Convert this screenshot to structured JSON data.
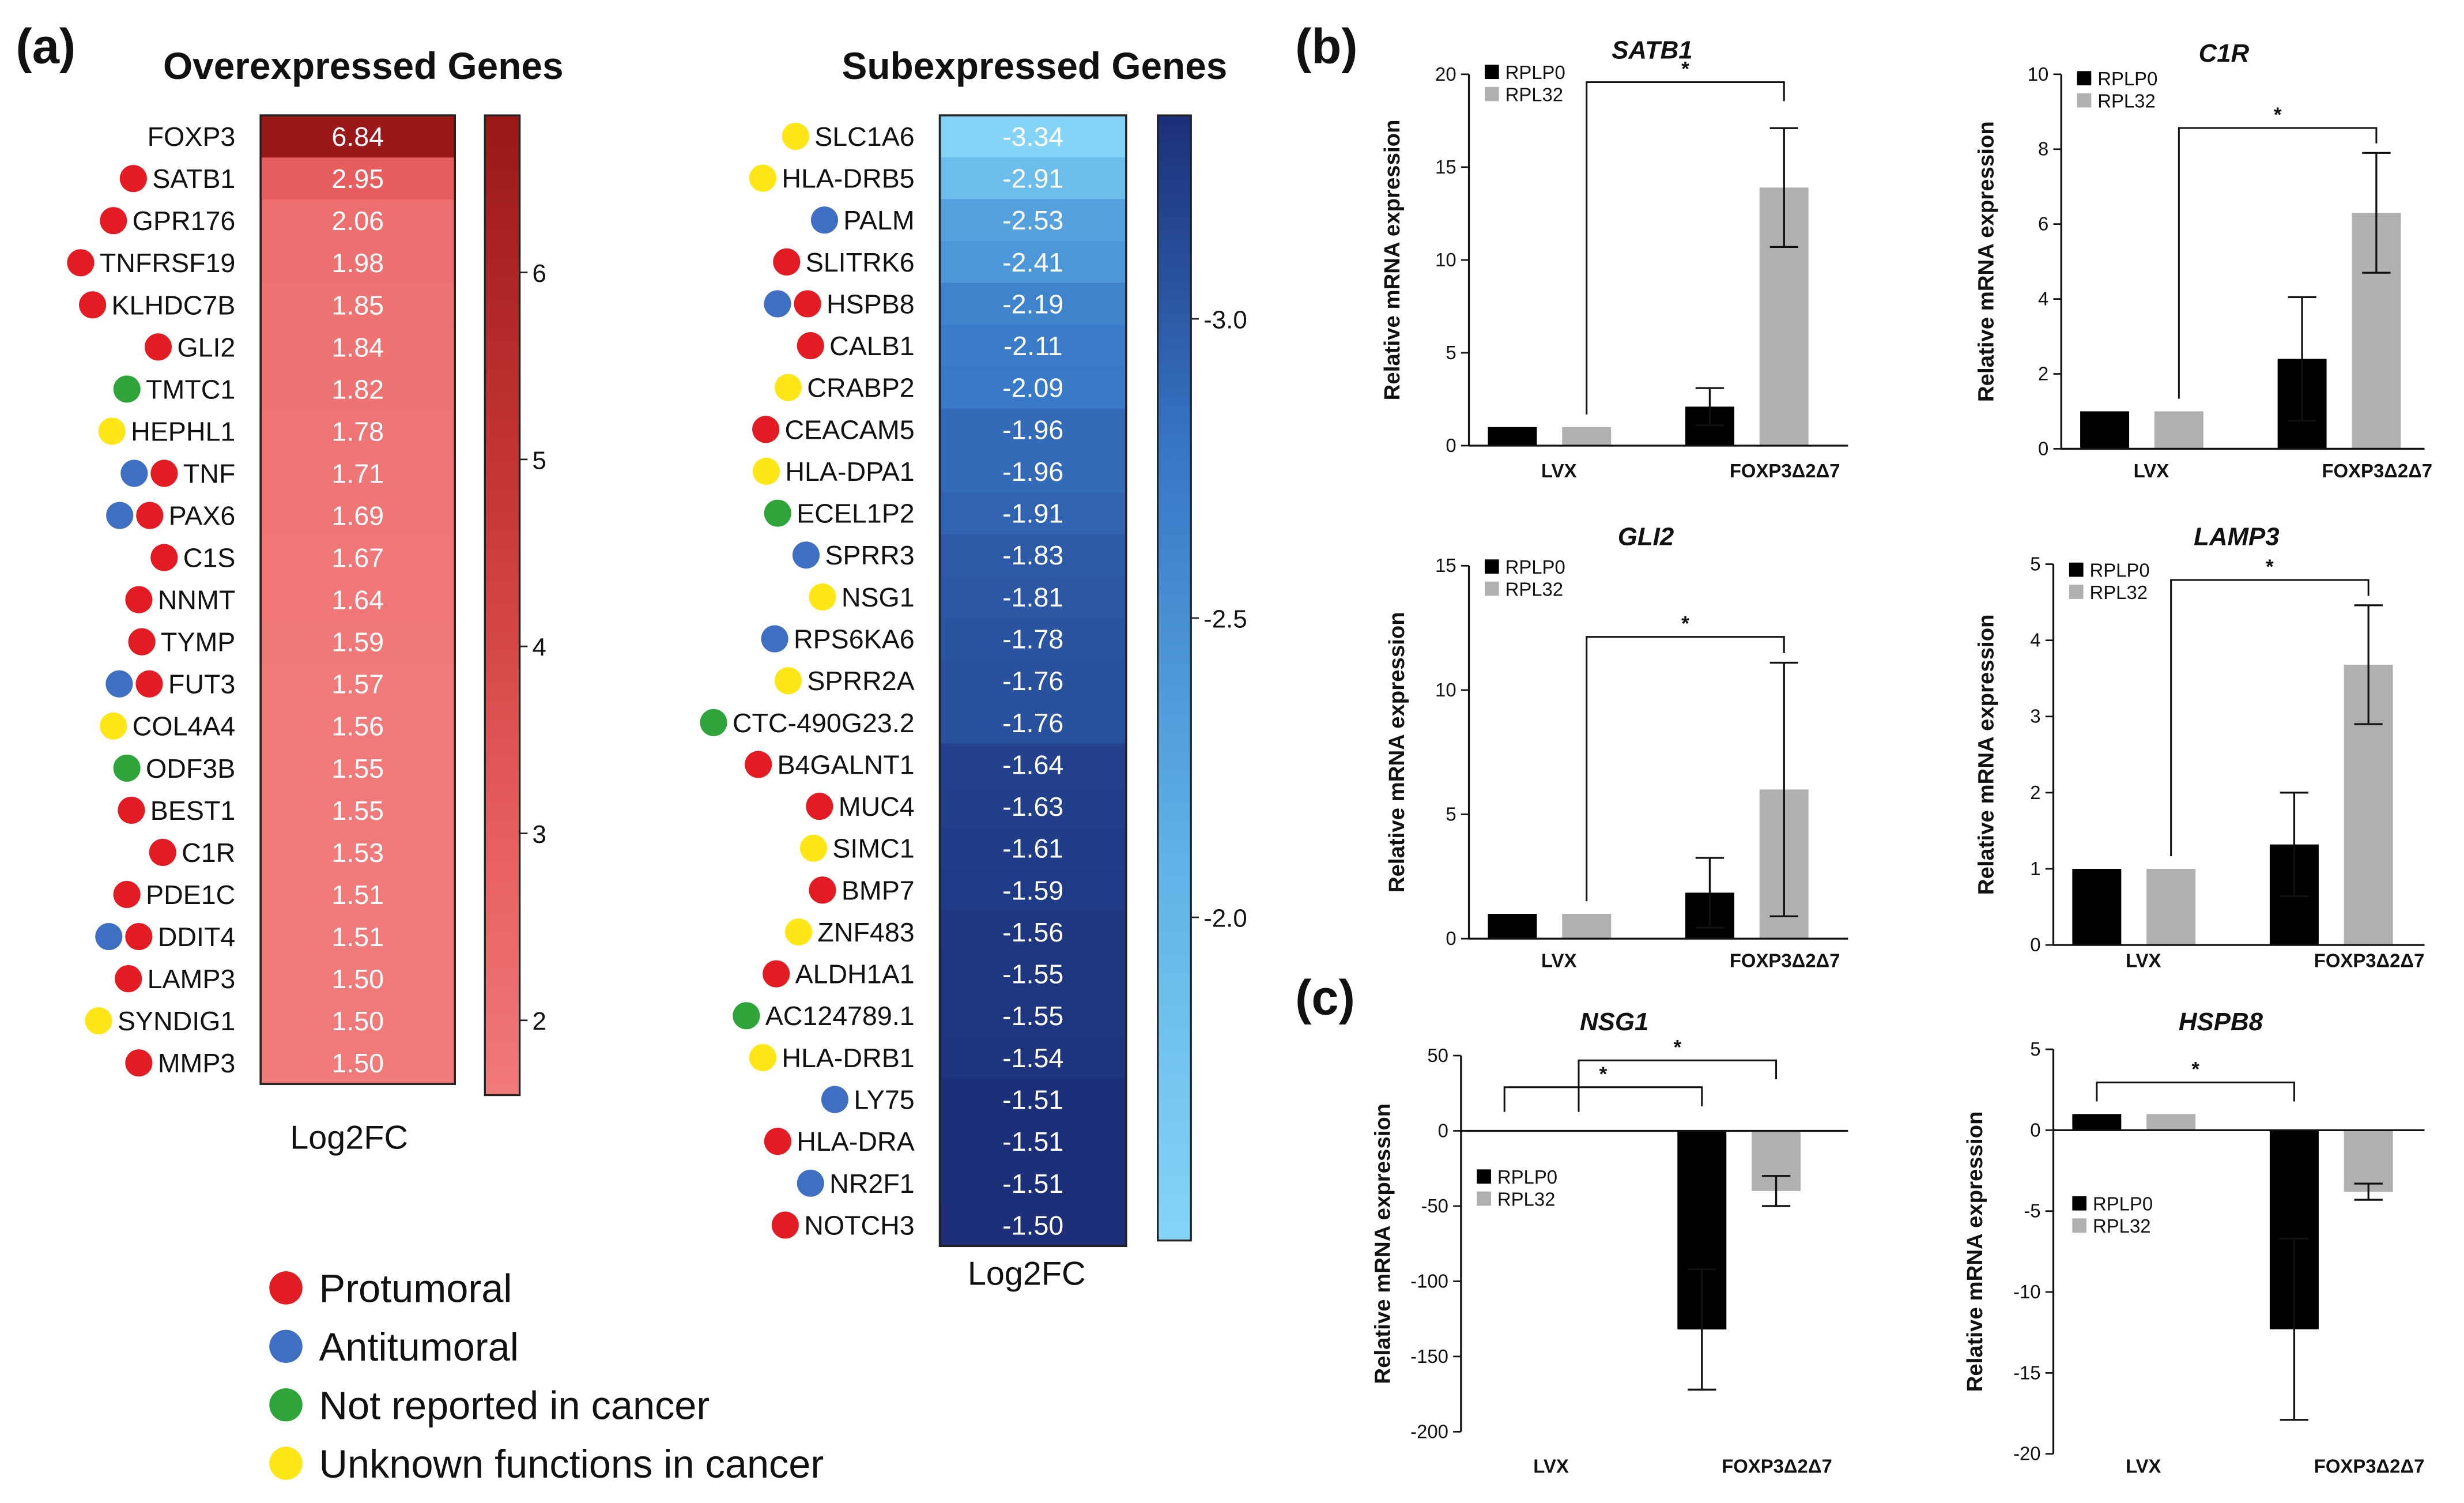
{
  "colors": {
    "protumoral": "#e31b23",
    "antitumoral": "#3f6fc2",
    "not_reported": "#2ea43a",
    "unknown": "#ffe619",
    "rplp0": "#000000",
    "rpl32": "#b0b0b0"
  },
  "panels": {
    "a": "(a)",
    "b": "(b)",
    "c": "(c)"
  },
  "legend": [
    {
      "label": "Protumoral",
      "cat": "P"
    },
    {
      "label": "Antitumoral",
      "cat": "A"
    },
    {
      "label": "Not reported in cancer",
      "cat": "N"
    },
    {
      "label": "Unknown functions in cancer",
      "cat": "U"
    }
  ],
  "chart_data": [
    {
      "type": "heatmap",
      "title": "Overexpressed Genes",
      "xlabel": "Log2FC",
      "colorbar_ticks": [
        "2",
        "3",
        "4",
        "5",
        "6"
      ],
      "colorbar_range": [
        1.5,
        6.84
      ],
      "rows": [
        {
          "gene": "FOXP3",
          "value": 6.84,
          "label": "6.84",
          "cats": []
        },
        {
          "gene": "SATB1",
          "value": 2.95,
          "label": "2.95",
          "cats": [
            "P"
          ]
        },
        {
          "gene": "GPR176",
          "value": 2.06,
          "label": "2.06",
          "cats": [
            "P"
          ]
        },
        {
          "gene": "TNFRSF19",
          "value": 1.98,
          "label": "1.98",
          "cats": [
            "P"
          ]
        },
        {
          "gene": "KLHDC7B",
          "value": 1.85,
          "label": "1.85",
          "cats": [
            "P"
          ]
        },
        {
          "gene": "GLI2",
          "value": 1.84,
          "label": "1.84",
          "cats": [
            "P"
          ]
        },
        {
          "gene": "TMTC1",
          "value": 1.82,
          "label": "1.82",
          "cats": [
            "N"
          ]
        },
        {
          "gene": "HEPHL1",
          "value": 1.78,
          "label": "1.78",
          "cats": [
            "U"
          ]
        },
        {
          "gene": "TNF",
          "value": 1.71,
          "label": "1.71",
          "cats": [
            "A",
            "P"
          ]
        },
        {
          "gene": "PAX6",
          "value": 1.69,
          "label": "1.69",
          "cats": [
            "A",
            "P"
          ]
        },
        {
          "gene": "C1S",
          "value": 1.67,
          "label": "1.67",
          "cats": [
            "P"
          ]
        },
        {
          "gene": "NNMT",
          "value": 1.64,
          "label": "1.64",
          "cats": [
            "P"
          ]
        },
        {
          "gene": "TYMP",
          "value": 1.59,
          "label": "1.59",
          "cats": [
            "P"
          ]
        },
        {
          "gene": "FUT3",
          "value": 1.57,
          "label": "1.57",
          "cats": [
            "A",
            "P"
          ]
        },
        {
          "gene": "COL4A4",
          "value": 1.56,
          "label": "1.56",
          "cats": [
            "U"
          ]
        },
        {
          "gene": "ODF3B",
          "value": 1.55,
          "label": "1.55",
          "cats": [
            "N"
          ]
        },
        {
          "gene": "BEST1",
          "value": 1.55,
          "label": "1.55",
          "cats": [
            "P"
          ]
        },
        {
          "gene": "C1R",
          "value": 1.53,
          "label": "1.53",
          "cats": [
            "P"
          ]
        },
        {
          "gene": "PDE1C",
          "value": 1.51,
          "label": "1.51",
          "cats": [
            "P"
          ]
        },
        {
          "gene": "DDIT4",
          "value": 1.51,
          "label": "1.51",
          "cats": [
            "A",
            "P"
          ]
        },
        {
          "gene": "LAMP3",
          "value": 1.5,
          "label": "1.50",
          "cats": [
            "P"
          ]
        },
        {
          "gene": "SYNDIG1",
          "value": 1.5,
          "label": "1.50",
          "cats": [
            "U"
          ]
        },
        {
          "gene": "MMP3",
          "value": 1.5,
          "label": "1.50",
          "cats": [
            "P"
          ]
        }
      ]
    },
    {
      "type": "heatmap",
      "title": "Subexpressed Genes",
      "xlabel": "Log2FC",
      "colorbar_ticks": [
        "-3.0",
        "-2.5",
        "-2.0"
      ],
      "colorbar_range": [
        -3.34,
        -1.5
      ],
      "rows": [
        {
          "gene": "SLC1A6",
          "value": -3.34,
          "label": "-3.34",
          "cats": [
            "U"
          ]
        },
        {
          "gene": "HLA-DRB5",
          "value": -2.91,
          "label": "-2.91",
          "cats": [
            "U"
          ]
        },
        {
          "gene": "PALM",
          "value": -2.53,
          "label": "-2.53",
          "cats": [
            "A"
          ]
        },
        {
          "gene": "SLITRK6",
          "value": -2.41,
          "label": "-2.41",
          "cats": [
            "P"
          ]
        },
        {
          "gene": "HSPB8",
          "value": -2.19,
          "label": "-2.19",
          "cats": [
            "A",
            "P"
          ]
        },
        {
          "gene": "CALB1",
          "value": -2.11,
          "label": "-2.11",
          "cats": [
            "P"
          ]
        },
        {
          "gene": "CRABP2",
          "value": -2.09,
          "label": "-2.09",
          "cats": [
            "U"
          ]
        },
        {
          "gene": "CEACAM5",
          "value": -1.96,
          "label": "-1.96",
          "cats": [
            "P"
          ]
        },
        {
          "gene": "HLA-DPA1",
          "value": -1.96,
          "label": "-1.96",
          "cats": [
            "U"
          ]
        },
        {
          "gene": "ECEL1P2",
          "value": -1.91,
          "label": "-1.91",
          "cats": [
            "N"
          ]
        },
        {
          "gene": "SPRR3",
          "value": -1.83,
          "label": "-1.83",
          "cats": [
            "A"
          ]
        },
        {
          "gene": "NSG1",
          "value": -1.81,
          "label": "-1.81",
          "cats": [
            "U"
          ]
        },
        {
          "gene": "RPS6KA6",
          "value": -1.78,
          "label": "-1.78",
          "cats": [
            "A"
          ]
        },
        {
          "gene": "SPRR2A",
          "value": -1.76,
          "label": "-1.76",
          "cats": [
            "U"
          ]
        },
        {
          "gene": "CTC-490G23.2",
          "value": -1.76,
          "label": "-1.76",
          "cats": [
            "N"
          ]
        },
        {
          "gene": "B4GALNT1",
          "value": -1.64,
          "label": "-1.64",
          "cats": [
            "P"
          ]
        },
        {
          "gene": "MUC4",
          "value": -1.63,
          "label": "-1.63",
          "cats": [
            "P"
          ]
        },
        {
          "gene": "SIMC1",
          "value": -1.61,
          "label": "-1.61",
          "cats": [
            "U"
          ]
        },
        {
          "gene": "BMP7",
          "value": -1.59,
          "label": "-1.59",
          "cats": [
            "P"
          ]
        },
        {
          "gene": "ZNF483",
          "value": -1.56,
          "label": "-1.56",
          "cats": [
            "U"
          ]
        },
        {
          "gene": "ALDH1A1",
          "value": -1.55,
          "label": "-1.55",
          "cats": [
            "P"
          ]
        },
        {
          "gene": "AC124789.1",
          "value": -1.55,
          "label": "-1.55",
          "cats": [
            "N"
          ]
        },
        {
          "gene": "HLA-DRB1",
          "value": -1.54,
          "label": "-1.54",
          "cats": [
            "U"
          ]
        },
        {
          "gene": "LY75",
          "value": -1.51,
          "label": "-1.51",
          "cats": [
            "A"
          ]
        },
        {
          "gene": "HLA-DRA",
          "value": -1.51,
          "label": "-1.51",
          "cats": [
            "P"
          ]
        },
        {
          "gene": "NR2F1",
          "value": -1.51,
          "label": "-1.51",
          "cats": [
            "A"
          ]
        },
        {
          "gene": "NOTCH3",
          "value": -1.5,
          "label": "-1.50",
          "cats": [
            "P"
          ]
        }
      ]
    },
    {
      "type": "bar",
      "title": "SATB1",
      "ylabel": "Relative mRNA expression",
      "categories": [
        "LVX",
        "FOXP3Δ2Δ7"
      ],
      "ylim": [
        0,
        20
      ],
      "yticks": [
        "0",
        "5",
        "10",
        "15",
        "20"
      ],
      "ytick_values": [
        0,
        5,
        10,
        15,
        20
      ],
      "series": [
        {
          "name": "RPLP0",
          "values": [
            1.0,
            2.1
          ],
          "errors": [
            0,
            1.0
          ]
        },
        {
          "name": "RPL32",
          "values": [
            1.0,
            13.9
          ],
          "errors": [
            0,
            3.2
          ]
        }
      ],
      "significance": [
        {
          "from": [
            0,
            "RPL32"
          ],
          "to": [
            1,
            "RPL32"
          ],
          "label": "*"
        }
      ]
    },
    {
      "type": "bar",
      "title": "C1R",
      "ylabel": "Relative mRNA expression",
      "categories": [
        "LVX",
        "FOXP3Δ2Δ7"
      ],
      "ylim": [
        0,
        10
      ],
      "yticks": [
        "0",
        "2",
        "4",
        "6",
        "8",
        "10"
      ],
      "ytick_values": [
        0,
        2,
        4,
        6,
        8,
        10
      ],
      "series": [
        {
          "name": "RPLP0",
          "values": [
            1.0,
            2.4
          ],
          "errors": [
            0,
            1.65
          ]
        },
        {
          "name": "RPL32",
          "values": [
            1.0,
            6.3
          ],
          "errors": [
            0,
            1.6
          ]
        }
      ],
      "significance": [
        {
          "from": [
            0,
            "RPL32"
          ],
          "to": [
            1,
            "RPL32"
          ],
          "label": "*"
        }
      ]
    },
    {
      "type": "bar",
      "title": "GLI2",
      "ylabel": "Relative mRNA expression",
      "categories": [
        "LVX",
        "FOXP3Δ2Δ7"
      ],
      "ylim": [
        0,
        15
      ],
      "yticks": [
        "0",
        "5",
        "10",
        "15"
      ],
      "ytick_values": [
        0,
        5,
        10,
        15
      ],
      "series": [
        {
          "name": "RPLP0",
          "values": [
            1.0,
            1.85
          ],
          "errors": [
            0,
            1.4
          ]
        },
        {
          "name": "RPL32",
          "values": [
            1.0,
            6.0
          ],
          "errors": [
            0,
            5.1
          ]
        }
      ],
      "significance": [
        {
          "from": [
            0,
            "RPL32"
          ],
          "to": [
            1,
            "RPL32"
          ],
          "label": "*"
        }
      ]
    },
    {
      "type": "bar",
      "title": "LAMP3",
      "ylabel": "Relative mRNA expression",
      "categories": [
        "LVX",
        "FOXP3Δ2Δ7"
      ],
      "ylim": [
        0,
        5
      ],
      "yticks": [
        "0",
        "1",
        "2",
        "3",
        "4",
        "5"
      ],
      "ytick_values": [
        0,
        1,
        2,
        3,
        4,
        5
      ],
      "series": [
        {
          "name": "RPLP0",
          "values": [
            1.0,
            1.32
          ],
          "errors": [
            0,
            0.68
          ]
        },
        {
          "name": "RPL32",
          "values": [
            1.0,
            3.68
          ],
          "errors": [
            0,
            0.78
          ]
        }
      ],
      "significance": [
        {
          "from": [
            0,
            "RPL32"
          ],
          "to": [
            1,
            "RPL32"
          ],
          "label": "*"
        }
      ]
    },
    {
      "type": "bar",
      "title": "NSG1",
      "ylabel": "Relative mRNA expression",
      "categories": [
        "LVX",
        "FOXP3Δ2Δ7"
      ],
      "ylim": [
        -200,
        50
      ],
      "yticks": [
        "50",
        "0",
        "-50",
        "-100",
        "-150",
        "-200"
      ],
      "ytick_values": [
        50,
        0,
        -50,
        -100,
        -150,
        -200
      ],
      "series": [
        {
          "name": "RPLP0",
          "values": [
            0,
            -132
          ],
          "errors": [
            0,
            40
          ]
        },
        {
          "name": "RPL32",
          "values": [
            0,
            -40
          ],
          "errors": [
            0,
            10
          ]
        }
      ],
      "significance": [
        {
          "from": [
            0,
            "RPLP0"
          ],
          "to": [
            1,
            "RPLP0"
          ],
          "label": "*"
        },
        {
          "from": [
            0,
            "RPL32"
          ],
          "to": [
            1,
            "RPL32"
          ],
          "label": "*"
        }
      ]
    },
    {
      "type": "bar",
      "title": "HSPB8",
      "ylabel": "Relative mRNA expression",
      "categories": [
        "LVX",
        "FOXP3Δ2Δ7"
      ],
      "ylim": [
        -20,
        5
      ],
      "yticks": [
        "5",
        "0",
        "-5",
        "-10",
        "-15",
        "-20"
      ],
      "ytick_values": [
        5,
        0,
        -5,
        -10,
        -15,
        -20
      ],
      "series": [
        {
          "name": "RPLP0",
          "values": [
            1.0,
            -12.3
          ],
          "errors": [
            0,
            5.6
          ]
        },
        {
          "name": "RPL32",
          "values": [
            1.0,
            -3.8
          ],
          "errors": [
            0,
            0.5
          ]
        }
      ],
      "significance": [
        {
          "from": [
            0,
            "RPLP0"
          ],
          "to": [
            1,
            "RPLP0"
          ],
          "label": "*"
        }
      ]
    }
  ]
}
